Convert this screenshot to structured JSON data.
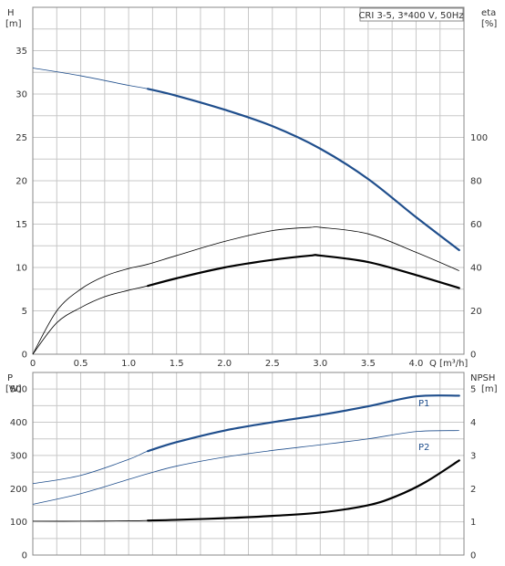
{
  "chart_data": [
    {
      "type": "line",
      "title": "CRI 3-5, 3*400 V, 50Hz",
      "xlabel": "Q [m³/h]",
      "x_ticks": [
        "0",
        "0.5",
        "1.0",
        "1.5",
        "2.0",
        "2.5",
        "3.0",
        "3.5",
        "4.0"
      ],
      "xlim": [
        0,
        4.5
      ],
      "y_left": {
        "label_top": "H",
        "label_unit": "[m]",
        "ylim": [
          0,
          40
        ],
        "ticks": [
          "0",
          "5",
          "10",
          "15",
          "20",
          "25",
          "30",
          "35"
        ]
      },
      "y_right": {
        "label_top": "eta",
        "label_unit": "[%]",
        "ylim": [
          0,
          160
        ],
        "ticks": [
          "0",
          "20",
          "40",
          "60",
          "80",
          "100"
        ]
      },
      "grid": true,
      "series": [
        {
          "axis": "left",
          "color": "#1f4e8c",
          "x": [
            0,
            0.5,
            1.0,
            1.2,
            1.5,
            2.0,
            2.5,
            3.0,
            3.5,
            4.0,
            4.45
          ],
          "y": [
            33.0,
            32.1,
            31.0,
            30.6,
            29.8,
            28.2,
            26.3,
            23.7,
            20.2,
            15.8,
            12.0
          ]
        },
        {
          "axis": "right",
          "color": "#000000",
          "x": [
            0,
            0.25,
            0.5,
            0.75,
            1.0,
            1.2,
            1.5,
            2.0,
            2.5,
            2.9,
            3.0,
            3.5,
            4.0,
            4.45
          ],
          "y": [
            0,
            20,
            30,
            36,
            39.5,
            41.5,
            45.5,
            52,
            57,
            58.5,
            58.5,
            55.5,
            47,
            38.5
          ]
        },
        {
          "axis": "right",
          "color": "#000000",
          "x": [
            0,
            0.25,
            0.5,
            0.75,
            1.0,
            1.2,
            1.5,
            2.0,
            2.5,
            2.9,
            3.0,
            3.5,
            4.0,
            4.45
          ],
          "y": [
            0,
            14.5,
            21.5,
            26.5,
            29.5,
            31.5,
            35,
            40,
            43.5,
            45.5,
            45.5,
            42.5,
            36.5,
            30.5
          ]
        }
      ]
    },
    {
      "type": "line",
      "xlim": [
        0,
        4.5
      ],
      "y_left": {
        "label_top": "P",
        "label_unit": "[W]",
        "ylim": [
          0,
          550
        ],
        "ticks": [
          "0",
          "100",
          "200",
          "300",
          "400",
          "500"
        ]
      },
      "y_right": {
        "label_top": "NPSH",
        "label_unit": "[m]",
        "ylim": [
          0,
          5.5
        ],
        "ticks": [
          "0",
          "1",
          "2",
          "3",
          "4",
          "5"
        ]
      },
      "grid": true,
      "series": [
        {
          "name": "P1",
          "axis": "left",
          "color": "#1f4e8c",
          "x": [
            0,
            0.5,
            1.0,
            1.2,
            1.5,
            2.0,
            2.5,
            3.0,
            3.5,
            4.0,
            4.45
          ],
          "y": [
            215,
            240,
            288,
            313,
            340,
            375,
            400,
            422,
            448,
            478,
            480
          ]
        },
        {
          "name": "P2",
          "axis": "left",
          "color": "#1f4e8c",
          "x": [
            0,
            0.5,
            1.0,
            1.2,
            1.5,
            2.0,
            2.5,
            3.0,
            3.5,
            4.0,
            4.45
          ],
          "y": [
            153,
            185,
            228,
            245,
            268,
            295,
            315,
            332,
            350,
            372,
            375
          ]
        },
        {
          "axis": "right",
          "color": "#000000",
          "x": [
            0,
            0.5,
            1.0,
            1.2,
            1.5,
            2.0,
            2.5,
            3.0,
            3.5,
            3.8,
            4.1,
            4.45
          ],
          "y": [
            1.02,
            1.02,
            1.03,
            1.04,
            1.06,
            1.11,
            1.18,
            1.28,
            1.5,
            1.78,
            2.2,
            2.85
          ]
        }
      ]
    }
  ]
}
